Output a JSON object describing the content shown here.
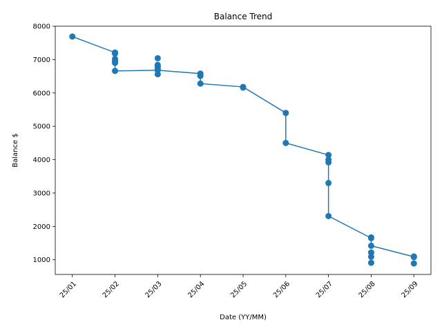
{
  "chart_data": {
    "type": "line",
    "title": "Balance Trend",
    "xlabel": "Date (YY/MM)",
    "ylabel": "Balance $",
    "x_tick_labels": [
      "25/01",
      "25/02",
      "25/03",
      "25/04",
      "25/05",
      "25/06",
      "25/07",
      "25/08",
      "25/09"
    ],
    "y_ticks": [
      1000,
      2000,
      3000,
      4000,
      5000,
      6000,
      7000,
      8000
    ],
    "xlim": [
      -0.4,
      8.4
    ],
    "ylim": [
      560,
      8000
    ],
    "grid": false,
    "legend": "none",
    "series": [
      {
        "color": "#1f77b4",
        "marker": "circle",
        "line_through_x_indices": true,
        "points": [
          {
            "x": "25/01",
            "values": [
              7690
            ]
          },
          {
            "x": "25/02",
            "values": [
              7210,
              7180,
              7020,
              6960,
              6900,
              6660
            ]
          },
          {
            "x": "25/03",
            "values": [
              7040,
              6840,
              6780,
              6730,
              6680,
              6560
            ]
          },
          {
            "x": "25/04",
            "values": [
              6580,
              6510,
              6280
            ]
          },
          {
            "x": "25/05",
            "values": [
              6180,
              6160
            ]
          },
          {
            "x": "25/06",
            "values": [
              5400,
              4500
            ]
          },
          {
            "x": "25/07",
            "values": [
              4140,
              4000,
              3920,
              3300,
              2310
            ]
          },
          {
            "x": "25/08",
            "values": [
              1670,
              1650,
              1420,
              1220,
              1090,
              910
            ]
          },
          {
            "x": "25/09",
            "values": [
              1100,
              1080,
              890
            ]
          }
        ],
        "line_path": [
          {
            "x": "25/01",
            "y": 7690
          },
          {
            "x": "25/02",
            "y": 7210
          },
          {
            "x": "25/02",
            "y": 6660
          },
          {
            "x": "25/03",
            "y": 6680
          },
          {
            "x": "25/04",
            "y": 6580
          },
          {
            "x": "25/04",
            "y": 6280
          },
          {
            "x": "25/05",
            "y": 6180
          },
          {
            "x": "25/06",
            "y": 5400
          },
          {
            "x": "25/06",
            "y": 4500
          },
          {
            "x": "25/07",
            "y": 4140
          },
          {
            "x": "25/07",
            "y": 2310
          },
          {
            "x": "25/08",
            "y": 1650
          },
          {
            "x": "25/08",
            "y": 1420
          },
          {
            "x": "25/09",
            "y": 1090
          }
        ]
      }
    ]
  }
}
